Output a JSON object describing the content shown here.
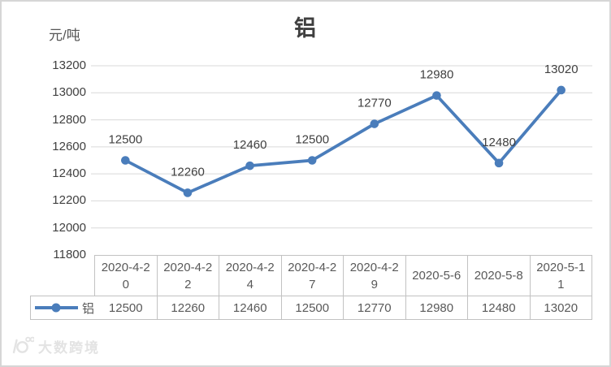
{
  "title": "铝",
  "axis_unit": "元/吨",
  "legend": {
    "series_label": "铝"
  },
  "watermark": {
    "logo": "10-degrees-logo",
    "text": "大数跨境"
  },
  "colors": {
    "line": "#4A7DBB",
    "grid": "#d9d9d9",
    "table_border": "#c2c2c2",
    "label_text": "#404040",
    "table_text": "#595959",
    "watermark": "#e3e3e3"
  },
  "chart_data": {
    "type": "line",
    "title": "铝",
    "ylabel": "元/吨",
    "xlabel": "",
    "categories": [
      "2020-4-20",
      "2020-4-22",
      "2020-4-24",
      "2020-4-27",
      "2020-4-29",
      "2020-5-6",
      "2020-5-8",
      "2020-5-11"
    ],
    "series": [
      {
        "name": "铝",
        "values": [
          12500,
          12260,
          12460,
          12500,
          12770,
          12980,
          12480,
          13020
        ]
      }
    ],
    "ylim": [
      11800,
      13200
    ],
    "yticks": [
      13200,
      13000,
      12800,
      12600,
      12400,
      12200,
      12000,
      11800
    ],
    "grid": true,
    "data_labels": true,
    "data_table": true,
    "legend_position": "table-left"
  }
}
